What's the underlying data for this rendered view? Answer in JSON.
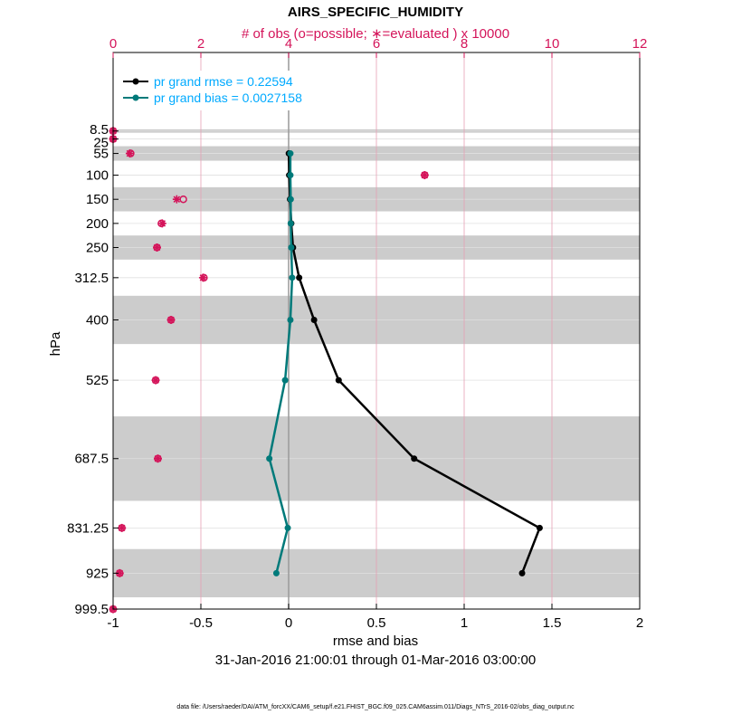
{
  "chart_data": {
    "type": "line",
    "title": "AIRS_SPECIFIC_HUMIDITY",
    "top_axis_label": "# of obs (o=possible; ∗=evaluated ) x 10000",
    "xlabel": "rmse and bias",
    "ylabel": "hPa",
    "date_range": "31-Jan-2016 21:00:01 through 01-Mar-2016 03:00:00",
    "footer": "data file: /Users/raeder/DAI/ATM_forcXX/CAM6_setup/f.e21.FHIST_BGC.f09_025.CAM6assim.011/Diags_NTrS_2016-02/obs_diag_output.nc",
    "xlim": [
      -1,
      2
    ],
    "xticks": [
      "-1",
      "-0.5",
      "0",
      "0.5",
      "1",
      "1.5",
      "2"
    ],
    "top_xlim": [
      0,
      12
    ],
    "top_xticks": [
      "0",
      "2",
      "4",
      "6",
      "8",
      "10",
      "12"
    ],
    "levels": [
      "8.5",
      "25",
      "55",
      "100",
      "150",
      "200",
      "250",
      "312.5",
      "400",
      "525",
      "687.5",
      "831.25",
      "925",
      "999.5"
    ],
    "level_values": [
      8.5,
      25,
      55,
      100,
      150,
      200,
      250,
      312.5,
      400,
      525,
      687.5,
      831.25,
      925,
      999.5
    ],
    "shaded_bands": [
      [
        5,
        12
      ],
      [
        40,
        70
      ],
      [
        125,
        175
      ],
      [
        225,
        275
      ],
      [
        350,
        450
      ],
      [
        600,
        775
      ],
      [
        875,
        975
      ]
    ],
    "series": [
      {
        "name": "pr grand rmse = 0.22594",
        "color": "#000000",
        "pressures": [
          55,
          100,
          150,
          200,
          250,
          312.5,
          400,
          525,
          687.5,
          831.25,
          925
        ],
        "values": [
          0.001,
          0.003,
          0.008,
          0.015,
          0.025,
          0.06,
          0.145,
          0.285,
          0.715,
          1.43,
          1.33
        ]
      },
      {
        "name": "pr grand bias = 0.0027158",
        "color": "#007a7a",
        "pressures": [
          55,
          100,
          150,
          200,
          250,
          312.5,
          400,
          525,
          687.5,
          831.25,
          925
        ],
        "values": [
          0.01,
          0.01,
          0.012,
          0.012,
          0.015,
          0.02,
          0.01,
          -0.02,
          -0.11,
          -0.005,
          -0.07
        ]
      }
    ],
    "obs_counts": {
      "pressures": [
        8.5,
        25,
        55,
        100,
        150,
        200,
        250,
        312.5,
        400,
        525,
        687.5,
        831.25,
        925,
        999.5
      ],
      "possible": [
        0.0,
        0.0,
        0.4,
        7.1,
        1.6,
        1.1,
        1.0,
        2.07,
        1.32,
        0.97,
        1.02,
        0.2,
        0.15,
        0.0
      ],
      "evaluated": [
        0.0,
        0.0,
        0.38,
        7.1,
        1.45,
        1.12,
        1.0,
        2.05,
        1.32,
        0.97,
        1.02,
        0.2,
        0.15,
        0.0
      ]
    }
  }
}
